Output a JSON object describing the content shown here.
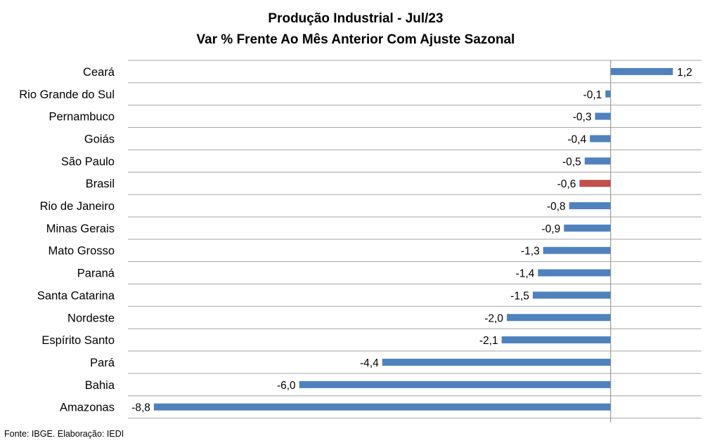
{
  "chart_data": {
    "type": "bar",
    "orientation": "horizontal",
    "title": "Produção Industrial - Jul/23",
    "subtitle": "Var % Frente Ao Mês Anterior Com Ajuste Sazonal",
    "categories": [
      "Ceará",
      "Rio Grande do Sul",
      "Pernambuco",
      "Goiás",
      "São Paulo",
      "Brasil",
      "Rio de Janeiro",
      "Minas Gerais",
      "Mato Grosso",
      "Paraná",
      "Santa Catarina",
      "Nordeste",
      "Espírito Santo",
      "Pará",
      "Bahia",
      "Amazonas"
    ],
    "values": [
      1.2,
      -0.1,
      -0.3,
      -0.4,
      -0.5,
      -0.6,
      -0.8,
      -0.9,
      -1.3,
      -1.4,
      -1.5,
      -2.0,
      -2.1,
      -4.4,
      -6.0,
      -8.8
    ],
    "value_labels": [
      "1,2",
      "-0,1",
      "-0,3",
      "-0,4",
      "-0,5",
      "-0,6",
      "-0,8",
      "-0,9",
      "-1,3",
      "-1,4",
      "-1,5",
      "-2,0",
      "-2,1",
      "-4,4",
      "-6,0",
      "-8,8"
    ],
    "highlight_category": "Brasil",
    "colors": {
      "bar": "#4f81bd",
      "highlight": "#c0504d",
      "grid": "#a6a6a6",
      "axis": "#868686"
    },
    "xlim": [
      -9.3,
      1.75
    ],
    "grid": true,
    "legend": "none",
    "source": "Fonte: IBGE. Elaboração: IEDI"
  }
}
